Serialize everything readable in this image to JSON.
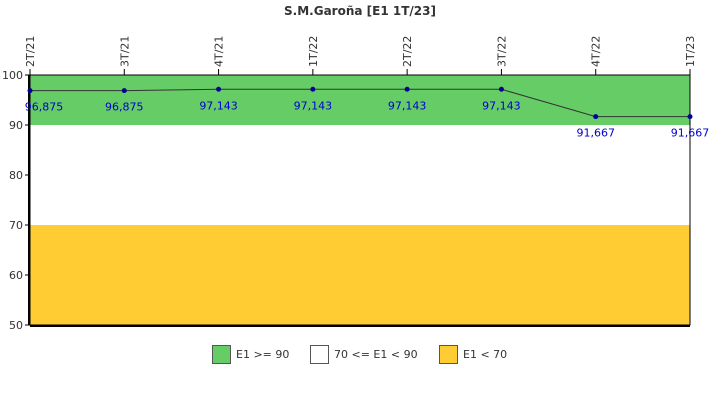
{
  "chart_data": {
    "type": "line",
    "title": "S.M.Garoña [E1 1T/23]",
    "categories": [
      "2T/21",
      "3T/21",
      "4T/21",
      "1T/22",
      "2T/22",
      "3T/22",
      "4T/22",
      "1T/23"
    ],
    "series": [
      {
        "values": [
          96.875,
          96.875,
          97.143,
          97.143,
          97.143,
          97.143,
          91.667,
          91.667
        ]
      }
    ],
    "data_labels": [
      "96,875",
      "96,875",
      "97,143",
      "97,143",
      "97,143",
      "97,143",
      "91,667",
      "91,667"
    ],
    "ylim": [
      50,
      100
    ],
    "yticks": [
      50,
      60,
      70,
      80,
      90,
      100
    ],
    "bands": [
      {
        "from": 90,
        "to": 100,
        "color": "#66cc66",
        "label": "E1 >= 90"
      },
      {
        "from": 70,
        "to": 90,
        "color": "#ffffff",
        "label": "70 <= E1 < 90"
      },
      {
        "from": 50,
        "to": 70,
        "color": "#ffcc33",
        "label": "E1 < 70"
      }
    ],
    "line_color": "#333333",
    "point_color": "#000099",
    "label_color": "#0000cc",
    "grid": false,
    "legend_position": "bottom"
  }
}
